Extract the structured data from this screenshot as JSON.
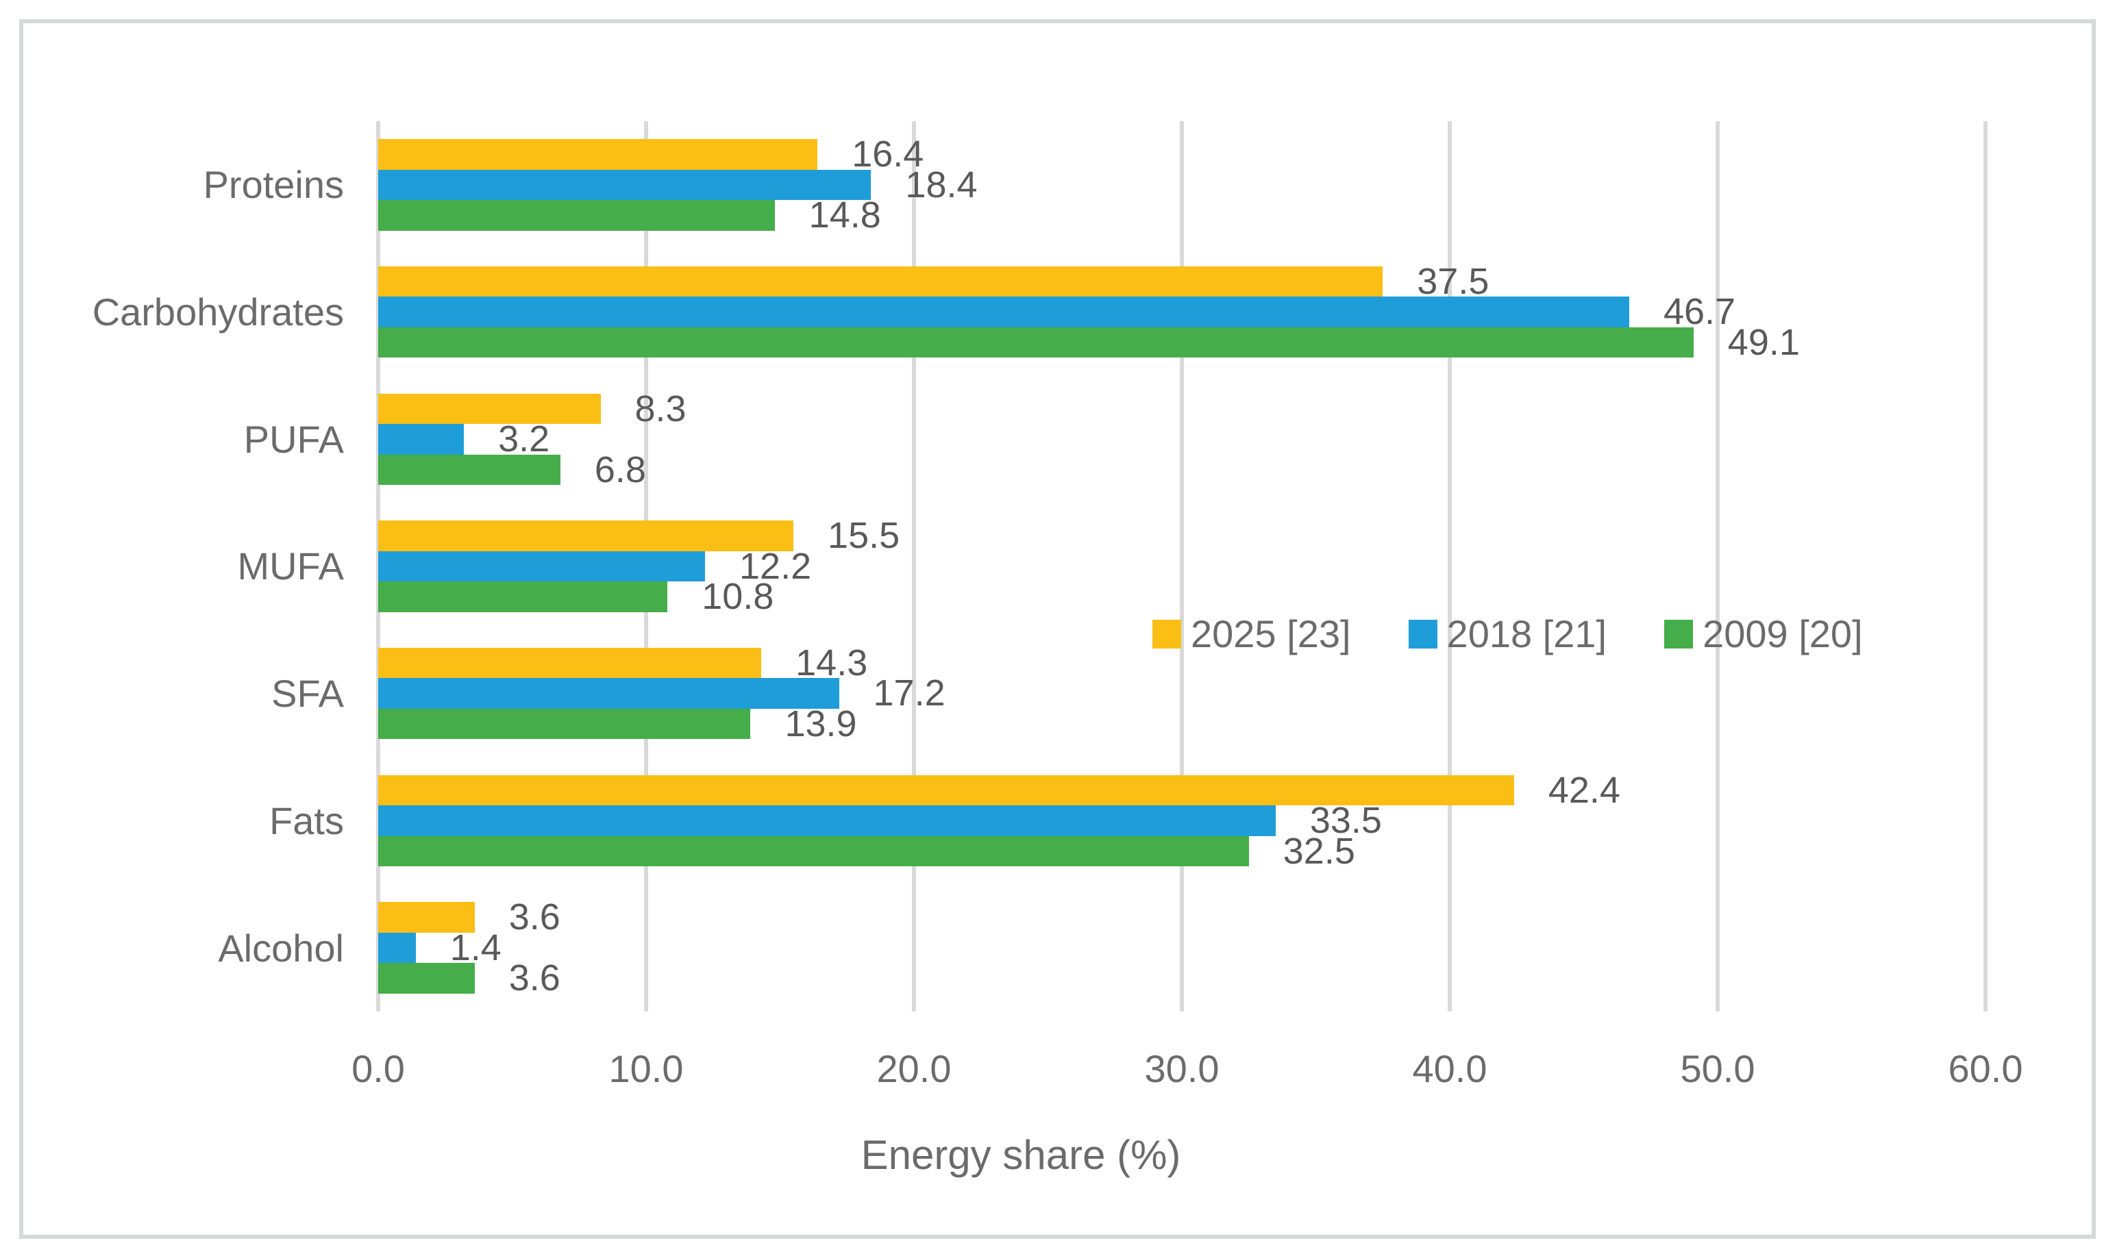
{
  "chart_data": {
    "type": "bar",
    "orientation": "horizontal",
    "title": "",
    "xlabel": "Energy share (%)",
    "ylabel": "",
    "xlim": [
      0,
      60
    ],
    "x_ticks": [
      0,
      10,
      20,
      30,
      40,
      50,
      60
    ],
    "x_tick_labels": [
      "0.0",
      "10.0",
      "20.0",
      "30.0",
      "40.0",
      "50.0",
      "60.0"
    ],
    "grid": true,
    "data_labels": true,
    "legend_position": "inside-center-right",
    "categories": [
      "Proteins",
      "Carbohydrates",
      "PUFA",
      "MUFA",
      "SFA",
      "Fats",
      "Alcohol"
    ],
    "series": [
      {
        "name": "2025 [23]",
        "color": "#FBBE14",
        "values": [
          16.4,
          37.5,
          8.3,
          15.5,
          14.3,
          42.4,
          3.6
        ]
      },
      {
        "name": "2018 [21]",
        "color": "#1F9DD9",
        "values": [
          18.4,
          46.7,
          3.2,
          12.2,
          17.2,
          33.5,
          1.4
        ]
      },
      {
        "name": "2009 [20]",
        "color": "#45AD49",
        "values": [
          14.8,
          49.1,
          6.8,
          10.8,
          13.9,
          32.5,
          3.6
        ]
      }
    ],
    "colors": {
      "text": "#595959",
      "category_text": "#6B6B6B",
      "gridline": "#D9D9D9",
      "border": "#D7D8D8",
      "background": "#FFFFFF"
    }
  }
}
